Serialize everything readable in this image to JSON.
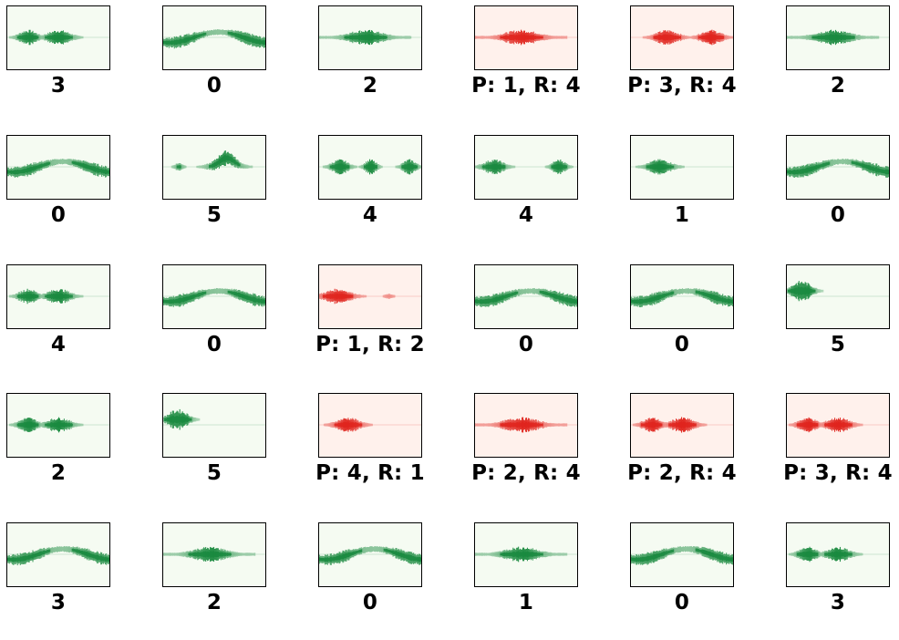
{
  "chart_data": {
    "type": "spectrogram-grid",
    "colors": {
      "correct_bg": "#f5fbf2",
      "correct_mark": "#1a8a3f",
      "incorrect_bg": "#fff1ec",
      "incorrect_mark": "#e0251e"
    },
    "panels": [
      {
        "label": "3",
        "correct": true,
        "shape": "two"
      },
      {
        "label": "0",
        "correct": true,
        "shape": "wave"
      },
      {
        "label": "2",
        "correct": true,
        "shape": "wide"
      },
      {
        "label": "P: 1, R: 4",
        "correct": false,
        "shape": "wide"
      },
      {
        "label": "P: 3, R: 4",
        "correct": false,
        "shape": "split"
      },
      {
        "label": "2",
        "correct": true,
        "shape": "wide"
      },
      {
        "label": "0",
        "correct": true,
        "shape": "wave"
      },
      {
        "label": "5",
        "correct": true,
        "shape": "peak"
      },
      {
        "label": "4",
        "correct": true,
        "shape": "dots"
      },
      {
        "label": "4",
        "correct": true,
        "shape": "dots2"
      },
      {
        "label": "1",
        "correct": true,
        "shape": "short"
      },
      {
        "label": "0",
        "correct": true,
        "shape": "wave"
      },
      {
        "label": "4",
        "correct": true,
        "shape": "two"
      },
      {
        "label": "0",
        "correct": true,
        "shape": "wave"
      },
      {
        "label": "P: 1, R: 2",
        "correct": false,
        "shape": "left"
      },
      {
        "label": "0",
        "correct": true,
        "shape": "wave"
      },
      {
        "label": "0",
        "correct": true,
        "shape": "wave"
      },
      {
        "label": "5",
        "correct": true,
        "shape": "blob"
      },
      {
        "label": "2",
        "correct": true,
        "shape": "two"
      },
      {
        "label": "5",
        "correct": true,
        "shape": "blob"
      },
      {
        "label": "P: 4, R: 1",
        "correct": false,
        "shape": "short"
      },
      {
        "label": "P: 2, R: 4",
        "correct": false,
        "shape": "wide"
      },
      {
        "label": "P: 2, R: 4",
        "correct": false,
        "shape": "two"
      },
      {
        "label": "P: 3, R: 4",
        "correct": false,
        "shape": "two"
      },
      {
        "label": "3",
        "correct": true,
        "shape": "wave"
      },
      {
        "label": "2",
        "correct": true,
        "shape": "wide"
      },
      {
        "label": "0",
        "correct": true,
        "shape": "wave"
      },
      {
        "label": "1",
        "correct": true,
        "shape": "wide"
      },
      {
        "label": "0",
        "correct": true,
        "shape": "wave"
      },
      {
        "label": "3",
        "correct": true,
        "shape": "two"
      }
    ]
  }
}
